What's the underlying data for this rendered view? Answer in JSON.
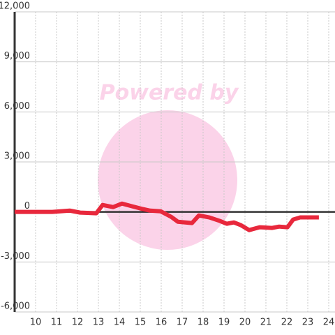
{
  "chart_data": {
    "type": "line",
    "annotation": "Powered by",
    "x": [
      9.0,
      10.8,
      11.63,
      12.13,
      12.9,
      13.2,
      13.7,
      14.13,
      14.63,
      15.13,
      15.47,
      15.97,
      16.47,
      16.8,
      17.47,
      17.8,
      18.3,
      18.8,
      19.13,
      19.47,
      19.8,
      20.2,
      20.7,
      21.3,
      21.63,
      22.03,
      22.3,
      22.63,
      23.53
    ],
    "series": [
      {
        "color": "#e8283c",
        "values": [
          0,
          0,
          80,
          -40,
          -80,
          420,
          290,
          500,
          330,
          170,
          80,
          40,
          -290,
          -590,
          -670,
          -210,
          -330,
          -540,
          -710,
          -630,
          -790,
          -1090,
          -920,
          -960,
          -880,
          -920,
          -460,
          -330,
          -330
        ]
      }
    ],
    "xlim": [
      9,
      24.3
    ],
    "xticks": [
      10,
      11,
      12,
      13,
      14,
      15,
      16,
      17,
      18,
      19,
      20,
      21,
      22,
      23,
      24
    ],
    "ylim": [
      -6000,
      12000
    ],
    "yticks": [
      {
        "value": -6000,
        "label": "-6,000"
      },
      {
        "value": -3000,
        "label": "-3,000"
      },
      0,
      {
        "value": 3000,
        "label": "3,000"
      },
      {
        "value": 6000,
        "label": "6,000"
      },
      {
        "value": 9000,
        "label": "9,000"
      },
      {
        "value": 12000,
        "label": "12,000"
      }
    ],
    "grid": true
  }
}
